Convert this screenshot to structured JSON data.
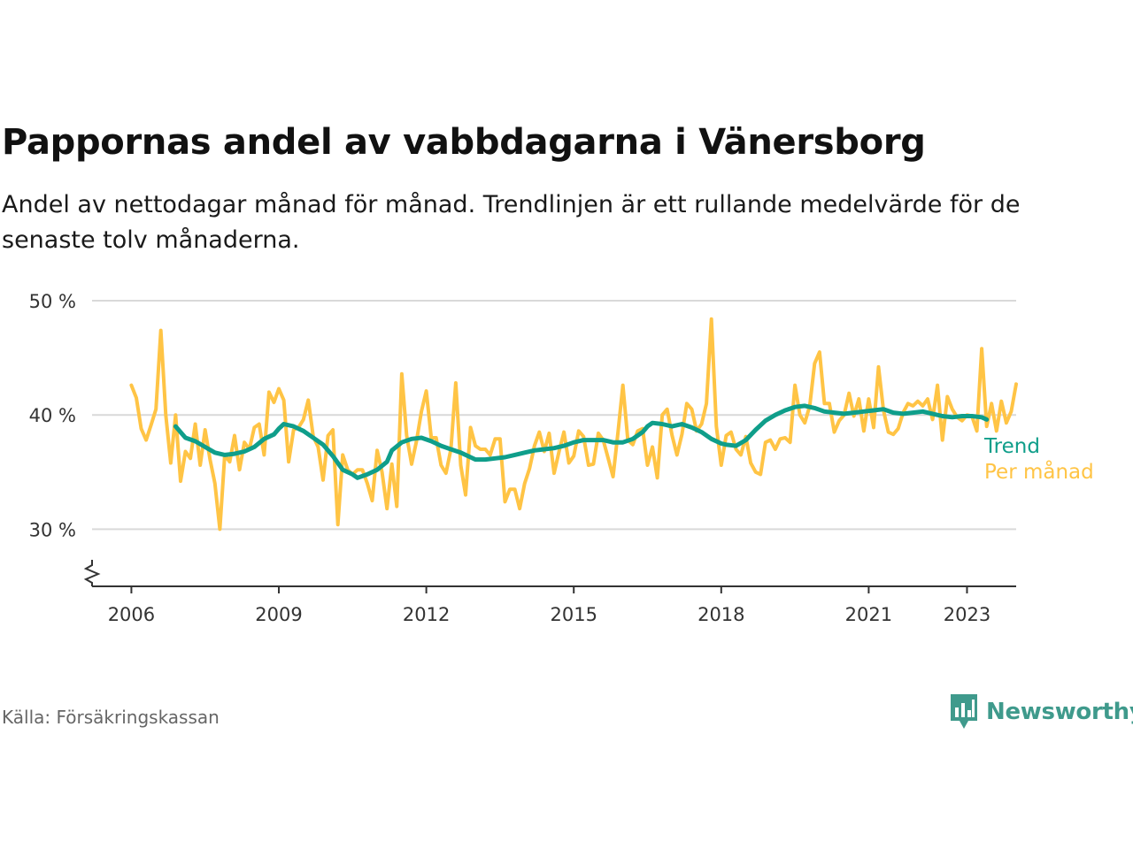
{
  "title": "Pappornas andel av vabbdagarna i Vänersborg",
  "subtitle": "Andel av nettodagar månad för månad. Trendlinjen är ett rullande medelvärde för de senaste tolv månaderna.",
  "source": "Källa: Försäkringskassan",
  "brand": {
    "name": "Newsworthy",
    "color": "#3f9a8c"
  },
  "chart_data": {
    "type": "line",
    "ylim": [
      25,
      50
    ],
    "xlim": [
      2005.2,
      2024.0
    ],
    "yticks": [
      {
        "value": 30,
        "label": "30 %"
      },
      {
        "value": 40,
        "label": "40 %"
      },
      {
        "value": 50,
        "label": "50 %"
      }
    ],
    "xticks": [
      {
        "value": 2006,
        "label": "2006"
      },
      {
        "value": 2009,
        "label": "2009"
      },
      {
        "value": 2012,
        "label": "2012"
      },
      {
        "value": 2015,
        "label": "2015"
      },
      {
        "value": 2018,
        "label": "2018"
      },
      {
        "value": 2021,
        "label": "2021"
      },
      {
        "value": 2023,
        "label": "2023"
      }
    ],
    "grid": true,
    "axis_break": true,
    "series": [
      {
        "name": "Trend",
        "color": "#0f9e8a",
        "points": [
          [
            2006.9,
            39.0
          ],
          [
            2007.1,
            38.0
          ],
          [
            2007.3,
            37.7
          ],
          [
            2007.5,
            37.2
          ],
          [
            2007.7,
            36.7
          ],
          [
            2007.9,
            36.5
          ],
          [
            2008.1,
            36.6
          ],
          [
            2008.3,
            36.8
          ],
          [
            2008.5,
            37.2
          ],
          [
            2008.7,
            37.9
          ],
          [
            2008.9,
            38.3
          ],
          [
            2009.0,
            38.8
          ],
          [
            2009.1,
            39.2
          ],
          [
            2009.3,
            39.0
          ],
          [
            2009.5,
            38.6
          ],
          [
            2009.7,
            38.0
          ],
          [
            2009.9,
            37.4
          ],
          [
            2010.1,
            36.4
          ],
          [
            2010.3,
            35.2
          ],
          [
            2010.5,
            34.8
          ],
          [
            2010.6,
            34.5
          ],
          [
            2010.8,
            34.8
          ],
          [
            2011.0,
            35.2
          ],
          [
            2011.2,
            35.9
          ],
          [
            2011.3,
            36.9
          ],
          [
            2011.5,
            37.6
          ],
          [
            2011.7,
            37.9
          ],
          [
            2011.9,
            38.0
          ],
          [
            2012.1,
            37.7
          ],
          [
            2012.3,
            37.3
          ],
          [
            2012.5,
            37.0
          ],
          [
            2012.7,
            36.7
          ],
          [
            2012.9,
            36.3
          ],
          [
            2013.0,
            36.1
          ],
          [
            2013.2,
            36.1
          ],
          [
            2013.4,
            36.2
          ],
          [
            2013.6,
            36.3
          ],
          [
            2013.8,
            36.5
          ],
          [
            2014.0,
            36.7
          ],
          [
            2014.2,
            36.9
          ],
          [
            2014.4,
            37.0
          ],
          [
            2014.6,
            37.1
          ],
          [
            2014.8,
            37.3
          ],
          [
            2015.0,
            37.6
          ],
          [
            2015.2,
            37.8
          ],
          [
            2015.4,
            37.8
          ],
          [
            2015.6,
            37.8
          ],
          [
            2015.8,
            37.6
          ],
          [
            2016.0,
            37.6
          ],
          [
            2016.2,
            37.9
          ],
          [
            2016.4,
            38.5
          ],
          [
            2016.5,
            39.0
          ],
          [
            2016.6,
            39.3
          ],
          [
            2016.8,
            39.2
          ],
          [
            2017.0,
            39.0
          ],
          [
            2017.2,
            39.2
          ],
          [
            2017.4,
            38.9
          ],
          [
            2017.6,
            38.5
          ],
          [
            2017.8,
            37.9
          ],
          [
            2018.0,
            37.5
          ],
          [
            2018.1,
            37.4
          ],
          [
            2018.3,
            37.3
          ],
          [
            2018.5,
            37.8
          ],
          [
            2018.7,
            38.7
          ],
          [
            2018.9,
            39.5
          ],
          [
            2019.1,
            40.0
          ],
          [
            2019.3,
            40.4
          ],
          [
            2019.5,
            40.7
          ],
          [
            2019.7,
            40.8
          ],
          [
            2019.9,
            40.6
          ],
          [
            2020.1,
            40.3
          ],
          [
            2020.3,
            40.2
          ],
          [
            2020.5,
            40.1
          ],
          [
            2020.7,
            40.2
          ],
          [
            2020.9,
            40.3
          ],
          [
            2021.1,
            40.4
          ],
          [
            2021.3,
            40.5
          ],
          [
            2021.5,
            40.2
          ],
          [
            2021.7,
            40.1
          ],
          [
            2021.9,
            40.2
          ],
          [
            2022.1,
            40.3
          ],
          [
            2022.3,
            40.1
          ],
          [
            2022.5,
            39.9
          ],
          [
            2022.7,
            39.8
          ],
          [
            2022.9,
            39.9
          ],
          [
            2023.1,
            39.9
          ],
          [
            2023.3,
            39.8
          ],
          [
            2023.4,
            39.6
          ]
        ]
      },
      {
        "name": "Per månad",
        "color": "#ffc445",
        "points": [
          [
            2006.0,
            42.6
          ],
          [
            2006.1,
            41.5
          ],
          [
            2006.2,
            38.8
          ],
          [
            2006.3,
            37.8
          ],
          [
            2006.4,
            39.1
          ],
          [
            2006.5,
            40.5
          ],
          [
            2006.6,
            47.4
          ],
          [
            2006.7,
            40.0
          ],
          [
            2006.8,
            35.8
          ],
          [
            2006.9,
            40.0
          ],
          [
            2007.0,
            34.2
          ],
          [
            2007.1,
            36.8
          ],
          [
            2007.2,
            36.2
          ],
          [
            2007.3,
            39.2
          ],
          [
            2007.4,
            35.6
          ],
          [
            2007.5,
            38.7
          ],
          [
            2007.6,
            36.1
          ],
          [
            2007.7,
            34.0
          ],
          [
            2007.8,
            30.0
          ],
          [
            2007.9,
            36.5
          ],
          [
            2008.0,
            35.9
          ],
          [
            2008.1,
            38.2
          ],
          [
            2008.2,
            35.2
          ],
          [
            2008.3,
            37.6
          ],
          [
            2008.4,
            37.0
          ],
          [
            2008.5,
            38.9
          ],
          [
            2008.6,
            39.2
          ],
          [
            2008.7,
            36.5
          ],
          [
            2008.8,
            42.0
          ],
          [
            2008.9,
            41.1
          ],
          [
            2009.0,
            42.3
          ],
          [
            2009.1,
            41.3
          ],
          [
            2009.2,
            35.9
          ],
          [
            2009.3,
            38.7
          ],
          [
            2009.4,
            38.9
          ],
          [
            2009.5,
            39.6
          ],
          [
            2009.6,
            41.3
          ],
          [
            2009.7,
            38.1
          ],
          [
            2009.8,
            37.2
          ],
          [
            2009.9,
            34.3
          ],
          [
            2010.0,
            38.2
          ],
          [
            2010.1,
            38.7
          ],
          [
            2010.2,
            30.4
          ],
          [
            2010.3,
            36.5
          ],
          [
            2010.4,
            35.2
          ],
          [
            2010.5,
            34.8
          ],
          [
            2010.6,
            35.2
          ],
          [
            2010.7,
            35.2
          ],
          [
            2010.8,
            34.0
          ],
          [
            2010.9,
            32.5
          ],
          [
            2011.0,
            36.9
          ],
          [
            2011.1,
            35.0
          ],
          [
            2011.2,
            31.8
          ],
          [
            2011.3,
            35.7
          ],
          [
            2011.4,
            32.0
          ],
          [
            2011.5,
            43.6
          ],
          [
            2011.6,
            38.2
          ],
          [
            2011.7,
            35.7
          ],
          [
            2011.8,
            37.7
          ],
          [
            2011.9,
            40.3
          ],
          [
            2012.0,
            42.1
          ],
          [
            2012.1,
            38.0
          ],
          [
            2012.2,
            38.0
          ],
          [
            2012.3,
            35.6
          ],
          [
            2012.4,
            34.9
          ],
          [
            2012.5,
            37.0
          ],
          [
            2012.6,
            42.8
          ],
          [
            2012.7,
            35.6
          ],
          [
            2012.8,
            33.0
          ],
          [
            2012.9,
            38.9
          ],
          [
            2013.0,
            37.3
          ],
          [
            2013.1,
            37.0
          ],
          [
            2013.2,
            37.0
          ],
          [
            2013.3,
            36.5
          ],
          [
            2013.4,
            37.9
          ],
          [
            2013.5,
            37.9
          ],
          [
            2013.6,
            32.4
          ],
          [
            2013.7,
            33.5
          ],
          [
            2013.8,
            33.5
          ],
          [
            2013.9,
            31.8
          ],
          [
            2014.0,
            34.0
          ],
          [
            2014.1,
            35.3
          ],
          [
            2014.2,
            37.3
          ],
          [
            2014.3,
            38.5
          ],
          [
            2014.4,
            36.8
          ],
          [
            2014.5,
            38.4
          ],
          [
            2014.6,
            34.9
          ],
          [
            2014.7,
            36.8
          ],
          [
            2014.8,
            38.5
          ],
          [
            2014.9,
            35.8
          ],
          [
            2015.0,
            36.4
          ],
          [
            2015.1,
            38.6
          ],
          [
            2015.2,
            38.1
          ],
          [
            2015.3,
            35.6
          ],
          [
            2015.4,
            35.7
          ],
          [
            2015.5,
            38.4
          ],
          [
            2015.6,
            37.8
          ],
          [
            2015.7,
            36.2
          ],
          [
            2015.8,
            34.6
          ],
          [
            2015.9,
            38.5
          ],
          [
            2016.0,
            42.6
          ],
          [
            2016.1,
            37.8
          ],
          [
            2016.2,
            37.4
          ],
          [
            2016.3,
            38.6
          ],
          [
            2016.4,
            38.8
          ],
          [
            2016.5,
            35.6
          ],
          [
            2016.6,
            37.2
          ],
          [
            2016.7,
            34.5
          ],
          [
            2016.8,
            40.0
          ],
          [
            2016.9,
            40.5
          ],
          [
            2017.0,
            38.2
          ],
          [
            2017.1,
            36.5
          ],
          [
            2017.2,
            38.3
          ],
          [
            2017.3,
            41.0
          ],
          [
            2017.4,
            40.5
          ],
          [
            2017.5,
            38.6
          ],
          [
            2017.6,
            39.2
          ],
          [
            2017.7,
            41.0
          ],
          [
            2017.8,
            48.4
          ],
          [
            2017.9,
            39.0
          ],
          [
            2018.0,
            35.6
          ],
          [
            2018.1,
            38.2
          ],
          [
            2018.2,
            38.5
          ],
          [
            2018.3,
            37.0
          ],
          [
            2018.4,
            36.5
          ],
          [
            2018.5,
            38.1
          ],
          [
            2018.6,
            35.8
          ],
          [
            2018.7,
            35.0
          ],
          [
            2018.8,
            34.8
          ],
          [
            2018.9,
            37.6
          ],
          [
            2019.0,
            37.8
          ],
          [
            2019.1,
            37.0
          ],
          [
            2019.2,
            37.9
          ],
          [
            2019.3,
            38.0
          ],
          [
            2019.4,
            37.6
          ],
          [
            2019.5,
            42.6
          ],
          [
            2019.6,
            40.0
          ],
          [
            2019.7,
            39.3
          ],
          [
            2019.8,
            40.8
          ],
          [
            2019.9,
            44.5
          ],
          [
            2020.0,
            45.5
          ],
          [
            2020.1,
            41.0
          ],
          [
            2020.2,
            41.0
          ],
          [
            2020.3,
            38.5
          ],
          [
            2020.4,
            39.5
          ],
          [
            2020.5,
            40.0
          ],
          [
            2020.6,
            41.9
          ],
          [
            2020.7,
            39.9
          ],
          [
            2020.8,
            41.4
          ],
          [
            2020.9,
            38.6
          ],
          [
            2021.0,
            41.4
          ],
          [
            2021.1,
            38.9
          ],
          [
            2021.2,
            44.2
          ],
          [
            2021.3,
            40.4
          ],
          [
            2021.4,
            38.5
          ],
          [
            2021.5,
            38.3
          ],
          [
            2021.6,
            38.8
          ],
          [
            2021.7,
            40.2
          ],
          [
            2021.8,
            41.0
          ],
          [
            2021.9,
            40.8
          ],
          [
            2022.0,
            41.2
          ],
          [
            2022.1,
            40.8
          ],
          [
            2022.2,
            41.4
          ],
          [
            2022.3,
            39.6
          ],
          [
            2022.4,
            42.6
          ],
          [
            2022.5,
            37.8
          ],
          [
            2022.6,
            41.6
          ],
          [
            2022.7,
            40.5
          ],
          [
            2022.8,
            39.8
          ],
          [
            2022.9,
            39.5
          ],
          [
            2023.0,
            40.0
          ],
          [
            2023.1,
            39.9
          ],
          [
            2023.2,
            38.6
          ],
          [
            2023.3,
            45.8
          ],
          [
            2023.4,
            39.0
          ],
          [
            2023.5,
            41.0
          ],
          [
            2023.6,
            38.6
          ],
          [
            2023.7,
            41.2
          ],
          [
            2023.8,
            39.3
          ],
          [
            2023.9,
            40.3
          ],
          [
            2024.0,
            42.7
          ]
        ]
      }
    ]
  }
}
